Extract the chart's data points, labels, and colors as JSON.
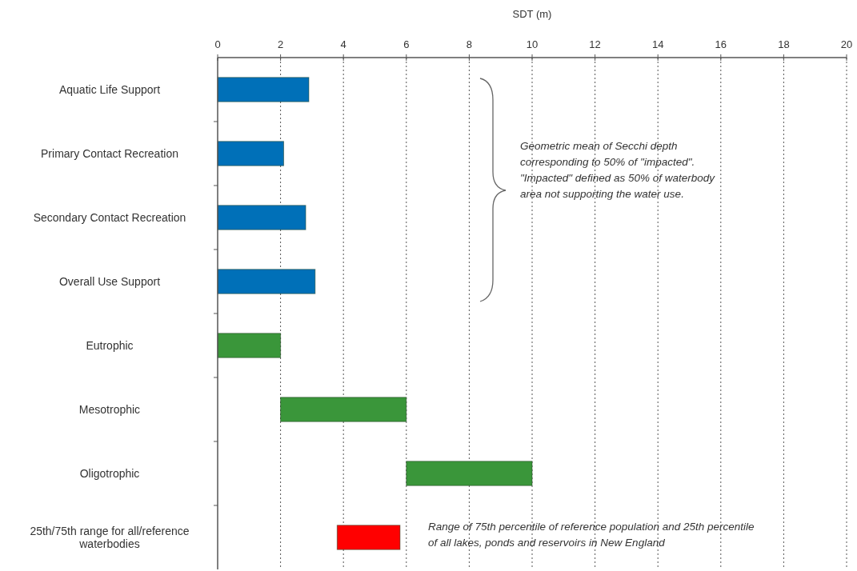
{
  "chart_data": {
    "type": "bar",
    "orientation": "horizontal",
    "xlabel": "SDT (m)",
    "categories": [
      "Aquatic Life Support",
      "Primary Contact Recreation",
      "Secondary Contact Recreation",
      "Overall Use Support",
      "Eutrophic",
      "Mesotrophic",
      "Oligotrophic",
      "25th/75th range for all/reference waterbodies"
    ],
    "values": [
      2.9,
      2.1,
      2.8,
      3.1,
      2,
      4,
      4,
      2
    ],
    "base": [
      0,
      0,
      0,
      0,
      0,
      2,
      6,
      3.8
    ],
    "colors": [
      "#0070b8",
      "#0070b8",
      "#0070b8",
      "#0070b8",
      "#3a963a",
      "#3a963a",
      "#3a963a",
      "#ff0000"
    ],
    "xlim": [
      0,
      20
    ],
    "xticks": [
      0,
      2,
      4,
      6,
      8,
      10,
      12,
      14,
      16,
      18,
      20
    ],
    "grid": "x",
    "annotations": [
      "Geometric mean of Secchi depth corresponding to 50% of \"impacted\". \"Impacted\" defined as 50% of waterbody area not supporting the water use.",
      "Range of 75th percentile of reference population and 25th percentile of all lakes, ponds and reservoirs in New England"
    ]
  }
}
